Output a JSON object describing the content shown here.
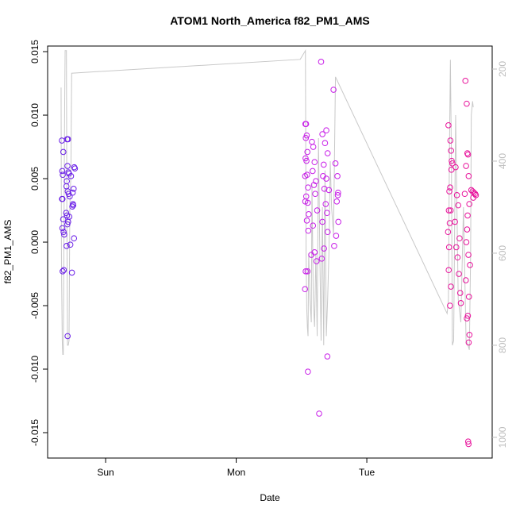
{
  "chart_data": {
    "type": "scatter",
    "title": "ATOM1 North_America f82_PM1_AMS",
    "x_label": "Date",
    "y_label": "f82_PM1_AMS",
    "xlim": [
      0.556,
      3.96
    ],
    "xticks": [
      {
        "value": 1,
        "label": "Sun"
      },
      {
        "value": 2,
        "label": "Mon"
      },
      {
        "value": 3,
        "label": "Tue"
      }
    ],
    "ylim": [
      -0.017,
      0.01544
    ],
    "yticks": [
      -0.015,
      {
        "value": -0.01,
        "label": "-0.010"
      },
      -0.005,
      {
        "value": 0,
        "label": "0.000"
      },
      0.005,
      {
        "value": 0.01,
        "label": "0.010"
      },
      0.015
    ],
    "y2lim": [
      1045,
      150
    ],
    "y2ticks": [
      200,
      400,
      600,
      800,
      1000
    ],
    "series": [
      {
        "type": "scatter",
        "color": "#6a1ee8",
        "x": [
          0.665,
          0.668,
          0.672,
          0.666,
          0.67,
          0.675,
          0.669,
          0.678,
          0.683,
          0.671,
          0.68,
          0.676,
          0.705,
          0.712,
          0.708,
          0.715,
          0.72,
          0.703,
          0.7,
          0.71,
          0.717,
          0.725,
          0.698,
          0.704,
          0.722,
          0.713,
          0.707,
          0.701,
          0.709,
          0.745,
          0.75,
          0.76,
          0.765,
          0.755,
          0.748,
          0.752,
          0.758,
          0.73,
          0.742,
          0.735
        ],
        "values": [
          0.008,
          0.0056,
          0.0053,
          0.0034,
          0.0034,
          0.0018,
          0.0011,
          0.0008,
          0.0006,
          -0.0023,
          -0.0022,
          0.0071,
          0.0081,
          0.0081,
          0.006,
          0.0055,
          0.0054,
          0.0048,
          0.0044,
          0.004,
          0.0038,
          0.0036,
          0.0023,
          0.0021,
          0.002,
          0.0016,
          0.0014,
          -0.0003,
          -0.0074,
          0.0028,
          0.003,
          0.0059,
          0.0058,
          0.0042,
          0.0039,
          0.0029,
          0.0003,
          -0.0002,
          -0.0024,
          0.0052
        ]
      },
      {
        "type": "scatter",
        "color": "#c81ee8",
        "x": [
          2.53,
          2.535,
          2.54,
          2.533,
          2.545,
          2.531,
          2.538,
          2.528,
          2.543,
          2.55,
          2.536,
          2.529,
          2.548,
          2.555,
          2.541,
          2.552,
          2.532,
          2.546,
          2.527,
          2.549,
          2.58,
          2.59,
          2.6,
          2.585,
          2.61,
          2.595,
          2.605,
          2.62,
          2.588,
          2.6,
          2.575,
          2.615,
          2.635,
          2.65,
          2.66,
          2.69,
          2.68,
          2.7,
          2.67,
          2.665,
          2.69,
          2.675,
          2.71,
          2.685,
          2.695,
          2.66,
          2.7,
          2.672,
          2.655,
          2.698,
          2.745,
          2.76,
          2.775,
          2.78,
          2.778,
          2.77,
          2.782,
          2.765,
          2.75
        ],
        "values": [
          0.0093,
          0.0093,
          0.0084,
          0.0082,
          0.0071,
          0.0066,
          0.0064,
          0.0052,
          0.0053,
          0.0043,
          0.0036,
          0.0032,
          0.0031,
          0.0022,
          0.0017,
          0.0009,
          -0.0023,
          -0.0023,
          -0.0037,
          -0.0102,
          0.0079,
          0.0075,
          0.0063,
          0.0056,
          0.0048,
          0.0045,
          0.0038,
          0.0025,
          0.0013,
          -0.0008,
          -0.001,
          -0.0015,
          -0.0135,
          0.0142,
          0.0085,
          0.0088,
          0.0078,
          0.007,
          0.0061,
          0.0052,
          0.005,
          0.0042,
          0.0041,
          0.003,
          0.0023,
          0.0016,
          0.0008,
          -0.0005,
          -0.0013,
          -0.009,
          0.012,
          0.0062,
          0.0052,
          0.0039,
          0.0037,
          0.0032,
          0.0016,
          0.0005,
          -0.0003
        ]
      },
      {
        "type": "scatter",
        "color": "#e8149c",
        "x": [
          3.625,
          3.64,
          3.645,
          3.65,
          3.655,
          3.648,
          3.638,
          3.632,
          3.628,
          3.642,
          3.635,
          3.622,
          3.63,
          3.627,
          3.644,
          3.637,
          3.68,
          3.69,
          3.7,
          3.675,
          3.71,
          3.685,
          3.695,
          3.705,
          3.715,
          3.72,
          3.755,
          3.765,
          3.77,
          3.775,
          3.76,
          3.78,
          3.75,
          3.785,
          3.772,
          3.768,
          3.762,
          3.778,
          3.79,
          3.758,
          3.782,
          3.774,
          3.766,
          3.786,
          3.78,
          3.776,
          3.779,
          3.8,
          3.81,
          3.82,
          3.83,
          3.835,
          3.815
        ],
        "values": [
          0.0092,
          0.008,
          0.0072,
          0.0064,
          0.0062,
          0.0057,
          0.0043,
          0.004,
          0.0025,
          0.0025,
          0.0015,
          0.0008,
          -0.0004,
          -0.0022,
          -0.0035,
          -0.005,
          0.0059,
          0.0037,
          0.0029,
          0.0016,
          0.0003,
          -0.0004,
          -0.0012,
          -0.0025,
          -0.004,
          -0.0048,
          0.0127,
          0.0109,
          0.007,
          0.0069,
          0.006,
          0.0052,
          0.0038,
          0.003,
          0.0021,
          0.001,
          0,
          -0.001,
          -0.0018,
          -0.003,
          -0.0043,
          -0.0058,
          -0.006,
          -0.0073,
          -0.0079,
          -0.0157,
          -0.0159,
          0.0041,
          0.004,
          0.0039,
          0.0038,
          0.0037,
          0.0035
        ]
      },
      {
        "type": "line",
        "axis": "y2",
        "color": "#c8c8c8",
        "x": [
          0.659,
          0.662,
          0.668,
          0.672,
          0.676,
          0.68,
          0.686,
          0.69,
          0.7,
          0.703,
          0.708,
          0.714,
          0.72,
          0.726,
          0.734,
          0.74,
          2.49,
          2.53,
          2.535,
          2.54,
          2.545,
          2.55,
          2.555,
          2.565,
          2.575,
          2.58,
          2.59,
          2.6,
          2.61,
          2.62,
          2.63,
          2.64,
          2.65,
          2.66,
          2.67,
          2.68,
          2.69,
          2.7,
          2.71,
          2.72,
          2.73,
          2.745,
          2.76,
          3.615,
          3.625,
          3.632,
          3.64,
          3.648,
          3.655,
          3.665,
          3.68,
          3.7,
          3.72,
          3.74,
          3.76,
          3.775,
          3.785,
          3.795,
          3.8,
          3.81,
          3.815
        ],
        "values": [
          240,
          620,
          790,
          820,
          820,
          600,
          300,
          160,
          160,
          500,
          800,
          800,
          790,
          500,
          430,
          209,
          179,
          160,
          600,
          720,
          760,
          780,
          600,
          700,
          750,
          450,
          700,
          760,
          600,
          780,
          350,
          600,
          790,
          500,
          800,
          420,
          780,
          700,
          600,
          400,
          500,
          560,
          217,
          731,
          700,
          400,
          180,
          400,
          800,
          790,
          300,
          700,
          750,
          500,
          790,
          800,
          810,
          600,
          300,
          270,
          283
        ]
      }
    ]
  }
}
